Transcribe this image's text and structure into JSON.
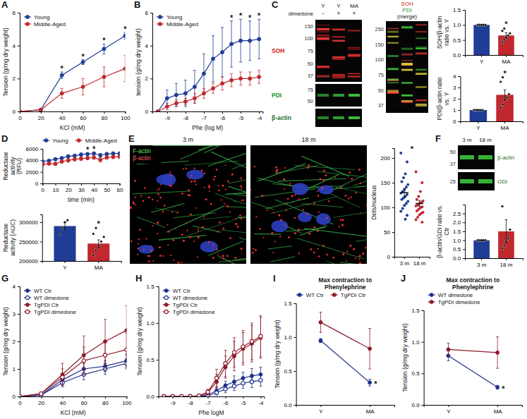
{
  "chart_data": [
    {
      "panel_label": "A",
      "type": "line",
      "x_label": "KCl (mM)",
      "y_label": "Tension (g/mg dry weight)",
      "x": [
        0,
        20,
        40,
        60,
        80,
        100
      ],
      "xlim": [
        0,
        100
      ],
      "xticks": [
        0,
        20,
        40,
        60,
        80,
        100
      ],
      "ylim": [
        0,
        6
      ],
      "yticks": [
        0,
        2,
        4,
        6
      ],
      "legend": "top-left",
      "series": [
        {
          "name": "Young",
          "color": "#1f3c96",
          "marker": "circle",
          "values": [
            0,
            0.1,
            2.2,
            3.0,
            3.8,
            4.6
          ],
          "errors": [
            0,
            0.05,
            0.2,
            0.15,
            0.3,
            0.2
          ]
        },
        {
          "name": "Middle-Aged",
          "color": "#c0282d",
          "marker": "circle",
          "values": [
            0,
            0.1,
            1.1,
            1.5,
            2.1,
            2.6
          ],
          "errors": [
            0,
            0.05,
            0.3,
            0.5,
            0.6,
            0.8
          ]
        }
      ],
      "annotations": [
        {
          "text": "*",
          "x": 40
        },
        {
          "text": "*",
          "x": 60
        },
        {
          "text": "*",
          "x": 80
        },
        {
          "text": "*",
          "x": 100
        }
      ]
    },
    {
      "panel_label": "B",
      "type": "line",
      "x_label": "Phe (log M)",
      "y_label": "tension (g/mg dry weight)",
      "x": [
        -9.5,
        -9,
        -8.5,
        -8,
        -7.5,
        -7,
        -6.5,
        -6,
        -5.5,
        -5,
        -4.5,
        -4
      ],
      "xlim": [
        -9.8,
        -3.8
      ],
      "xticks": [
        -9,
        -8,
        -7,
        -6,
        -5,
        -4
      ],
      "ylim": [
        0,
        6
      ],
      "yticks": [
        0,
        2,
        4,
        6
      ],
      "legend": "top-left",
      "series": [
        {
          "name": "Young",
          "color": "#1f3c96",
          "marker": "circle",
          "values": [
            0,
            0.8,
            1.0,
            1.1,
            1.5,
            2.3,
            3.2,
            3.6,
            4.1,
            4.3,
            4.3,
            4.4
          ],
          "errors": [
            0,
            0.5,
            0.7,
            0.8,
            1.0,
            1.2,
            1.4,
            1.5,
            1.4,
            1.3,
            1.2,
            1.2
          ]
        },
        {
          "name": "Middle-Aged",
          "color": "#c0282d",
          "marker": "circle",
          "values": [
            0,
            0.3,
            0.5,
            0.6,
            0.8,
            1.1,
            1.4,
            1.7,
            1.9,
            2.0,
            2.0,
            2.1
          ],
          "errors": [
            0,
            0.2,
            0.2,
            0.2,
            0.3,
            0.3,
            0.3,
            0.4,
            0.4,
            0.4,
            0.4,
            0.4
          ]
        }
      ],
      "annotations": [
        {
          "text": "*",
          "x": -5.5
        },
        {
          "text": "*",
          "x": -5
        },
        {
          "text": "*",
          "x": -4.5
        },
        {
          "text": "*",
          "x": -4
        }
      ]
    },
    {
      "type": "bar",
      "y_label": "SOH/β-actin ratio vs. Y",
      "categories": [
        "Y",
        "MA"
      ],
      "colors": [
        "#1f3c96",
        "#c0282d"
      ],
      "values": [
        1,
        0.65
      ],
      "errors": [
        0,
        0.09
      ],
      "points": [
        [
          1,
          1,
          1,
          1,
          1,
          1,
          1
        ],
        [
          0.42,
          0.5,
          0.58,
          0.65,
          0.72,
          0.8,
          0.88
        ]
      ],
      "ylim": [
        0,
        1.5
      ],
      "yticks": [
        {
          "value": 0,
          "label": "0.0"
        },
        0.5,
        {
          "value": 1,
          "label": "1.0"
        },
        1.5
      ],
      "annotations": [
        {
          "text": "*",
          "x": "MA"
        }
      ]
    },
    {
      "type": "bar",
      "y_label": "PDI/β-actin ratio vs. Y",
      "categories": [
        "Y",
        "MA"
      ],
      "colors": [
        "#1f3c96",
        "#c0282d"
      ],
      "values": [
        1,
        2.35
      ],
      "errors": [
        0,
        0.45
      ],
      "points": [
        [
          1,
          1,
          1,
          1,
          1,
          1,
          1
        ],
        [
          1.2,
          1.5,
          1.9,
          2.1,
          2.4,
          3.5,
          3.9
        ]
      ],
      "ylim": [
        0,
        4
      ],
      "yticks": [
        0,
        1,
        2,
        3,
        4
      ],
      "annotations": [
        {
          "text": "*",
          "x": "MA"
        }
      ]
    },
    {
      "panel_label": "D",
      "type": "line",
      "x_label": "time (min)",
      "y_label": "Reductase activity (RFU)",
      "x": [
        0,
        5,
        10,
        15,
        20,
        25,
        30,
        35,
        40,
        45,
        50,
        55,
        60
      ],
      "xlim": [
        0,
        60
      ],
      "xticks": [
        0,
        10,
        20,
        30,
        40,
        50,
        60
      ],
      "ylim": [
        0,
        6000
      ],
      "yticks": [
        0,
        2000,
        4000,
        6000
      ],
      "legend": "top",
      "series": [
        {
          "name": "Young",
          "color": "#1f3c96",
          "marker": "circle",
          "values": [
            3800,
            3950,
            4200,
            4400,
            4700,
            4800,
            5000,
            5100,
            5200,
            4900,
            5100,
            5200,
            5200
          ],
          "errors": [
            150,
            150,
            200,
            200,
            250,
            250,
            250,
            200,
            200,
            300,
            250,
            250,
            250
          ]
        },
        {
          "name": "Middle-Aged",
          "color": "#c0282d",
          "marker": "circle",
          "values": [
            3300,
            3450,
            3400,
            3800,
            4000,
            4200,
            4300,
            4400,
            4500,
            4100,
            4500,
            4600,
            4650
          ],
          "errors": [
            200,
            250,
            250,
            250,
            300,
            300,
            300,
            300,
            300,
            400,
            300,
            300,
            300
          ]
        }
      ],
      "annotations": [
        {
          "text": "*",
          "x": 35
        },
        {
          "text": "*",
          "x": 40
        }
      ]
    },
    {
      "type": "bar",
      "y_label": "Reductase activity (AUC)",
      "categories": [
        "Y",
        "MA"
      ],
      "colors": [
        "#1f3c96",
        "#c0282d"
      ],
      "values": [
        290000,
        245000
      ],
      "errors": [
        9000,
        9500
      ],
      "points": [
        [
          268000,
          285000,
          300000,
          305000
        ],
        [
          215000,
          228000,
          240000,
          250000,
          262000,
          270000,
          285000
        ]
      ],
      "ylim": [
        200000,
        320000
      ],
      "yticks": [
        200000,
        250000,
        300000
      ],
      "annotations": [
        {
          "text": "*",
          "x": "MA"
        }
      ]
    },
    {
      "type": "dot",
      "y_label": "Dots/nucleus",
      "categories": [
        "3 m",
        "18 m"
      ],
      "colors": [
        "#1f3c96",
        "#c0282d"
      ],
      "values": [
        130,
        108
      ],
      "errors": [
        8,
        6
      ],
      "points": [
        [
          210,
          192,
          168,
          160,
          152,
          146,
          141,
          136,
          132,
          129,
          126,
          122,
          119,
          116,
          112,
          108,
          104,
          98,
          92,
          84,
          76
        ],
        [
          172,
          150,
          132,
          122,
          116,
          113,
          110,
          108,
          105,
          103,
          101,
          99,
          96,
          93,
          90,
          88,
          85,
          80,
          75,
          70
        ]
      ],
      "ylim": [
        0,
        220
      ],
      "yticks": [
        0,
        50,
        100,
        150,
        200
      ],
      "annotations": [
        {
          "text": "*"
        }
      ]
    },
    {
      "type": "bar",
      "y_label": "β-actin/GDI ratio vs. Ctr",
      "categories": [
        "3 m",
        "18 m"
      ],
      "colors": [
        "#1f3c96",
        "#c0282d"
      ],
      "values": [
        1,
        1.5
      ],
      "errors": [
        0,
        0.65
      ],
      "points": [
        [
          1,
          1,
          1,
          1,
          1,
          1
        ],
        [
          0.55,
          0.7,
          0.95,
          1.1,
          1.6,
          2.9
        ]
      ],
      "ylim": [
        0,
        3
      ],
      "yticks": [
        {
          "value": 0,
          "label": "0.0"
        },
        0.5,
        {
          "value": 1,
          "label": "1.0"
        },
        1.5,
        {
          "value": 2,
          "label": "2.0"
        },
        2.5
      ]
    },
    {
      "panel_label": "G",
      "type": "line",
      "x_label": "KCl (mM)",
      "y_label": "Tension (g/mg dry weight)",
      "x": [
        0,
        20,
        40,
        60,
        80,
        100
      ],
      "xlim": [
        0,
        100
      ],
      "xticks": [
        0,
        20,
        40,
        60,
        80,
        100
      ],
      "ylim": [
        0,
        4
      ],
      "yticks": [
        0,
        1,
        2,
        3,
        4
      ],
      "legend": "top-left",
      "series": [
        {
          "name": "WT Ctr",
          "color": "#1f2f8a",
          "marker": "circle",
          "values": [
            0,
            0.05,
            0.6,
            1.0,
            1.1,
            1.3
          ],
          "errors": [
            0,
            0.03,
            0.15,
            0.2,
            0.2,
            0.25
          ]
        },
        {
          "name": "WT dimedone",
          "color": "#1f2f8a",
          "marker": "open-circle",
          "values": [
            0,
            0.05,
            0.5,
            0.8,
            1.0,
            1.2
          ],
          "errors": [
            0,
            0.03,
            0.15,
            0.2,
            0.2,
            0.2
          ]
        },
        {
          "name": "TgPDI Ctr",
          "color": "#8e1b2a",
          "marker": "circle",
          "values": [
            0,
            0.1,
            0.8,
            1.5,
            2.0,
            2.4
          ],
          "errors": [
            0,
            0.05,
            0.4,
            0.7,
            0.8,
            0.9
          ]
        },
        {
          "name": "TgPDI dimedone",
          "color": "#8e1b2a",
          "marker": "open-circle",
          "values": [
            0,
            0.1,
            0.7,
            1.3,
            1.5,
            1.7
          ],
          "errors": [
            0,
            0.05,
            0.3,
            0.5,
            0.5,
            0.6
          ]
        }
      ]
    },
    {
      "panel_label": "H",
      "type": "line",
      "x_label": "Phe logM",
      "y_label": "Tension (g/mg dry weight)",
      "x": [
        -9.5,
        -9,
        -8.5,
        -8,
        -7.5,
        -7,
        -6.5,
        -6,
        -5.5,
        -5,
        -4.5,
        -4
      ],
      "xlim": [
        -9.8,
        -3.8
      ],
      "xticks": [
        -9,
        -8,
        -7,
        -6,
        -5,
        -4
      ],
      "ylim": [
        0,
        1.5
      ],
      "yticks": [
        {
          "value": 0,
          "label": "0.0"
        },
        0.5,
        {
          "value": 1,
          "label": "1.0"
        },
        1.5
      ],
      "legend": "top-left",
      "series": [
        {
          "name": "WT Ctr",
          "color": "#1f2f8a",
          "marker": "circle",
          "values": [
            0,
            0,
            0,
            0,
            0,
            0.02,
            0.08,
            0.15,
            0.2,
            0.25,
            0.28,
            0.3
          ],
          "errors": [
            0,
            0,
            0,
            0,
            0,
            0.02,
            0.04,
            0.06,
            0.08,
            0.08,
            0.1,
            0.1
          ]
        },
        {
          "name": "WT dimedone",
          "color": "#1f2f8a",
          "marker": "open-circle",
          "values": [
            0,
            0,
            0,
            0,
            0,
            0.01,
            0.05,
            0.1,
            0.14,
            0.18,
            0.2,
            0.22
          ],
          "errors": [
            0,
            0,
            0,
            0,
            0,
            0.01,
            0.03,
            0.05,
            0.06,
            0.07,
            0.08,
            0.08
          ]
        },
        {
          "name": "TgPDI Ctr",
          "color": "#8e1b2a",
          "marker": "circle",
          "values": [
            0,
            0,
            0,
            0,
            0,
            0.05,
            0.2,
            0.4,
            0.55,
            0.65,
            0.72,
            0.8
          ],
          "errors": [
            0,
            0,
            0,
            0,
            0,
            0.03,
            0.1,
            0.15,
            0.2,
            0.22,
            0.25,
            0.28
          ]
        },
        {
          "name": "TgPDI dimedone",
          "color": "#8e1b2a",
          "marker": "open-circle",
          "values": [
            0,
            0,
            0,
            0,
            0.01,
            0.06,
            0.25,
            0.45,
            0.6,
            0.68,
            0.75,
            0.82
          ],
          "errors": [
            0,
            0,
            0,
            0,
            0.01,
            0.04,
            0.12,
            0.18,
            0.2,
            0.22,
            0.25,
            0.28
          ]
        }
      ]
    },
    {
      "panel_label": "I",
      "type": "line",
      "title": "Max contraction to Phenylephrine",
      "y_label": "Tension (g/mg dry weight)",
      "categories": [
        "Y",
        "MA"
      ],
      "ylim": [
        0,
        1.5
      ],
      "yticks": [
        {
          "value": 0,
          "label": "0.0"
        },
        0.5,
        {
          "value": 1,
          "label": "1.0"
        },
        1.5
      ],
      "legend": "top",
      "series": [
        {
          "name": "WT Ctr",
          "color": "#1f2f8a",
          "marker": "circle",
          "values": [
            0.95,
            0.33
          ],
          "errors": [
            0.03,
            0.05
          ]
        },
        {
          "name": "TgPDI Ctr",
          "color": "#8e1b2a",
          "marker": "circle",
          "values": [
            1.22,
            0.83
          ],
          "errors": [
            0.15,
            0.3
          ]
        }
      ],
      "annotations": [
        {
          "text": "*",
          "x": "MA",
          "series": 0
        }
      ]
    },
    {
      "panel_label": "J",
      "type": "line",
      "title": "Max contraction to Phenylephrine",
      "y_label": "Tension (g/mg dry weight)",
      "categories": [
        "Y",
        "MA"
      ],
      "ylim": [
        0,
        1.5
      ],
      "yticks": [
        {
          "value": 0,
          "label": "0.0"
        },
        0.5,
        {
          "value": 1,
          "label": "1.0"
        },
        1.5
      ],
      "legend": "top",
      "series": [
        {
          "name": "WT dimedone",
          "color": "#1f2f8a",
          "marker": "circle",
          "values": [
            0.78,
            0.28
          ],
          "errors": [
            0.08,
            0.03
          ]
        },
        {
          "name": "TgPDI dimedone",
          "color": "#8e1b2a",
          "marker": "circle",
          "values": [
            0.88,
            0.83
          ],
          "errors": [
            0.1,
            0.25
          ]
        }
      ],
      "annotations": [
        {
          "text": "*",
          "x": "MA",
          "series": 0
        }
      ]
    }
  ],
  "images": [
    {
      "panel_label": "C",
      "lanes": [
        "Y",
        "Y",
        "MA"
      ],
      "treatment": {
        "label": "dimedone",
        "values": [
          "-",
          "+",
          "+"
        ]
      },
      "strips": [
        {
          "label": "SOH",
          "markers": [
            150,
            100,
            75,
            50,
            37
          ]
        },
        {
          "label": "PDI",
          "markers": [
            75,
            50
          ]
        },
        {
          "label": "β-actin"
        }
      ]
    },
    {
      "labels": [
        "SOH",
        "PDI",
        "(merge)"
      ],
      "markers": [
        250,
        150,
        100,
        75,
        50,
        37
      ]
    },
    {
      "panel_label": "E",
      "frames": [
        {
          "title": "3 m"
        },
        {
          "title": "18 m"
        }
      ],
      "channels": [
        "F-actin",
        "β-actin"
      ]
    },
    {
      "panel_label": "F",
      "lanes": [
        "3 m",
        "18 m"
      ],
      "strips": [
        {
          "label": "β-actin",
          "markers": [
            50,
            37
          ]
        },
        {
          "label": "GDI",
          "markers": [
            25
          ]
        }
      ]
    }
  ]
}
